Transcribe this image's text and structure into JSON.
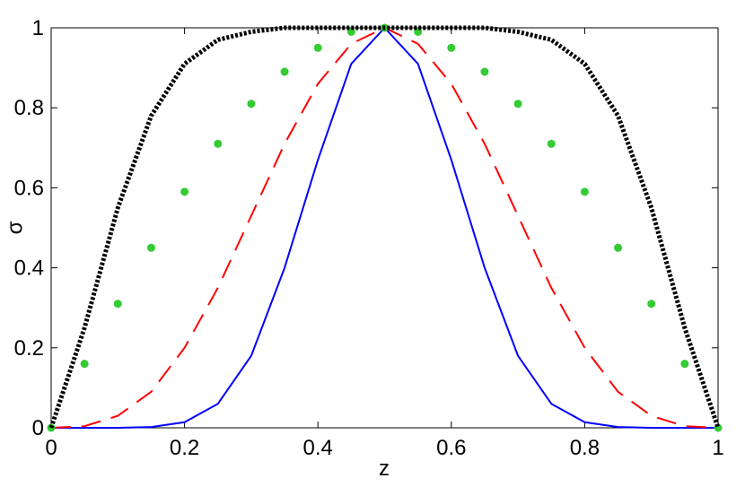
{
  "chart_data": {
    "type": "line",
    "x_label": "z",
    "y_label": "σ",
    "x": [
      0,
      0.05,
      0.1,
      0.15,
      0.2,
      0.25,
      0.3,
      0.35,
      0.4,
      0.45,
      0.5,
      0.55,
      0.6,
      0.65,
      0.7,
      0.75,
      0.8,
      0.85,
      0.9,
      0.95,
      1
    ],
    "series": [
      {
        "name": "blue",
        "color": "#0000ff",
        "style": "solid",
        "values": [
          0,
          0,
          0,
          0.002,
          0.014,
          0.06,
          0.18,
          0.4,
          0.67,
          0.91,
          1,
          0.91,
          0.67,
          0.4,
          0.18,
          0.06,
          0.014,
          0.002,
          0,
          0,
          0
        ]
      },
      {
        "name": "red",
        "color": "#ff0000",
        "style": "dashed",
        "values": [
          0,
          0.004,
          0.03,
          0.09,
          0.2,
          0.35,
          0.53,
          0.71,
          0.86,
          0.96,
          1,
          0.96,
          0.86,
          0.71,
          0.53,
          0.35,
          0.2,
          0.09,
          0.03,
          0.004,
          0
        ]
      },
      {
        "name": "green",
        "color": "#33cc33",
        "style": "markers",
        "values": [
          0,
          0.16,
          0.31,
          0.45,
          0.59,
          0.71,
          0.81,
          0.89,
          0.95,
          0.99,
          1,
          0.99,
          0.95,
          0.89,
          0.81,
          0.71,
          0.59,
          0.45,
          0.31,
          0.16,
          0
        ]
      },
      {
        "name": "black",
        "color": "#000000",
        "style": "dotted",
        "values": [
          0,
          0.25,
          0.55,
          0.78,
          0.91,
          0.97,
          0.99,
          1,
          1,
          1,
          1,
          1,
          1,
          1,
          0.99,
          0.97,
          0.91,
          0.78,
          0.55,
          0.25,
          0
        ]
      }
    ],
    "xlim": [
      0,
      1
    ],
    "ylim": [
      0,
      1
    ],
    "xticks": [
      0,
      0.2,
      0.4,
      0.6,
      0.8,
      1
    ],
    "yticks": [
      0,
      0.2,
      0.4,
      0.6,
      0.8,
      1
    ],
    "grid": false
  }
}
